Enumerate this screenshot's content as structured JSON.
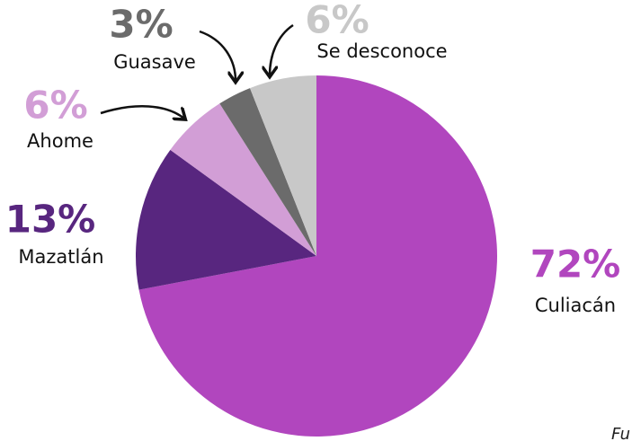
{
  "chart_data": {
    "type": "pie",
    "categories": [
      "Culiacán",
      "Mazatlán",
      "Ahome",
      "Guasave",
      "Se desconoce"
    ],
    "values": [
      72,
      13,
      6,
      3,
      6
    ],
    "value_labels": [
      "72%",
      "13%",
      "6%",
      "3%",
      "6%"
    ],
    "colors": [
      "#b146be",
      "#58267f",
      "#d29ed6",
      "#6b6b6b",
      "#c8c8c8"
    ],
    "note": "Fu"
  }
}
